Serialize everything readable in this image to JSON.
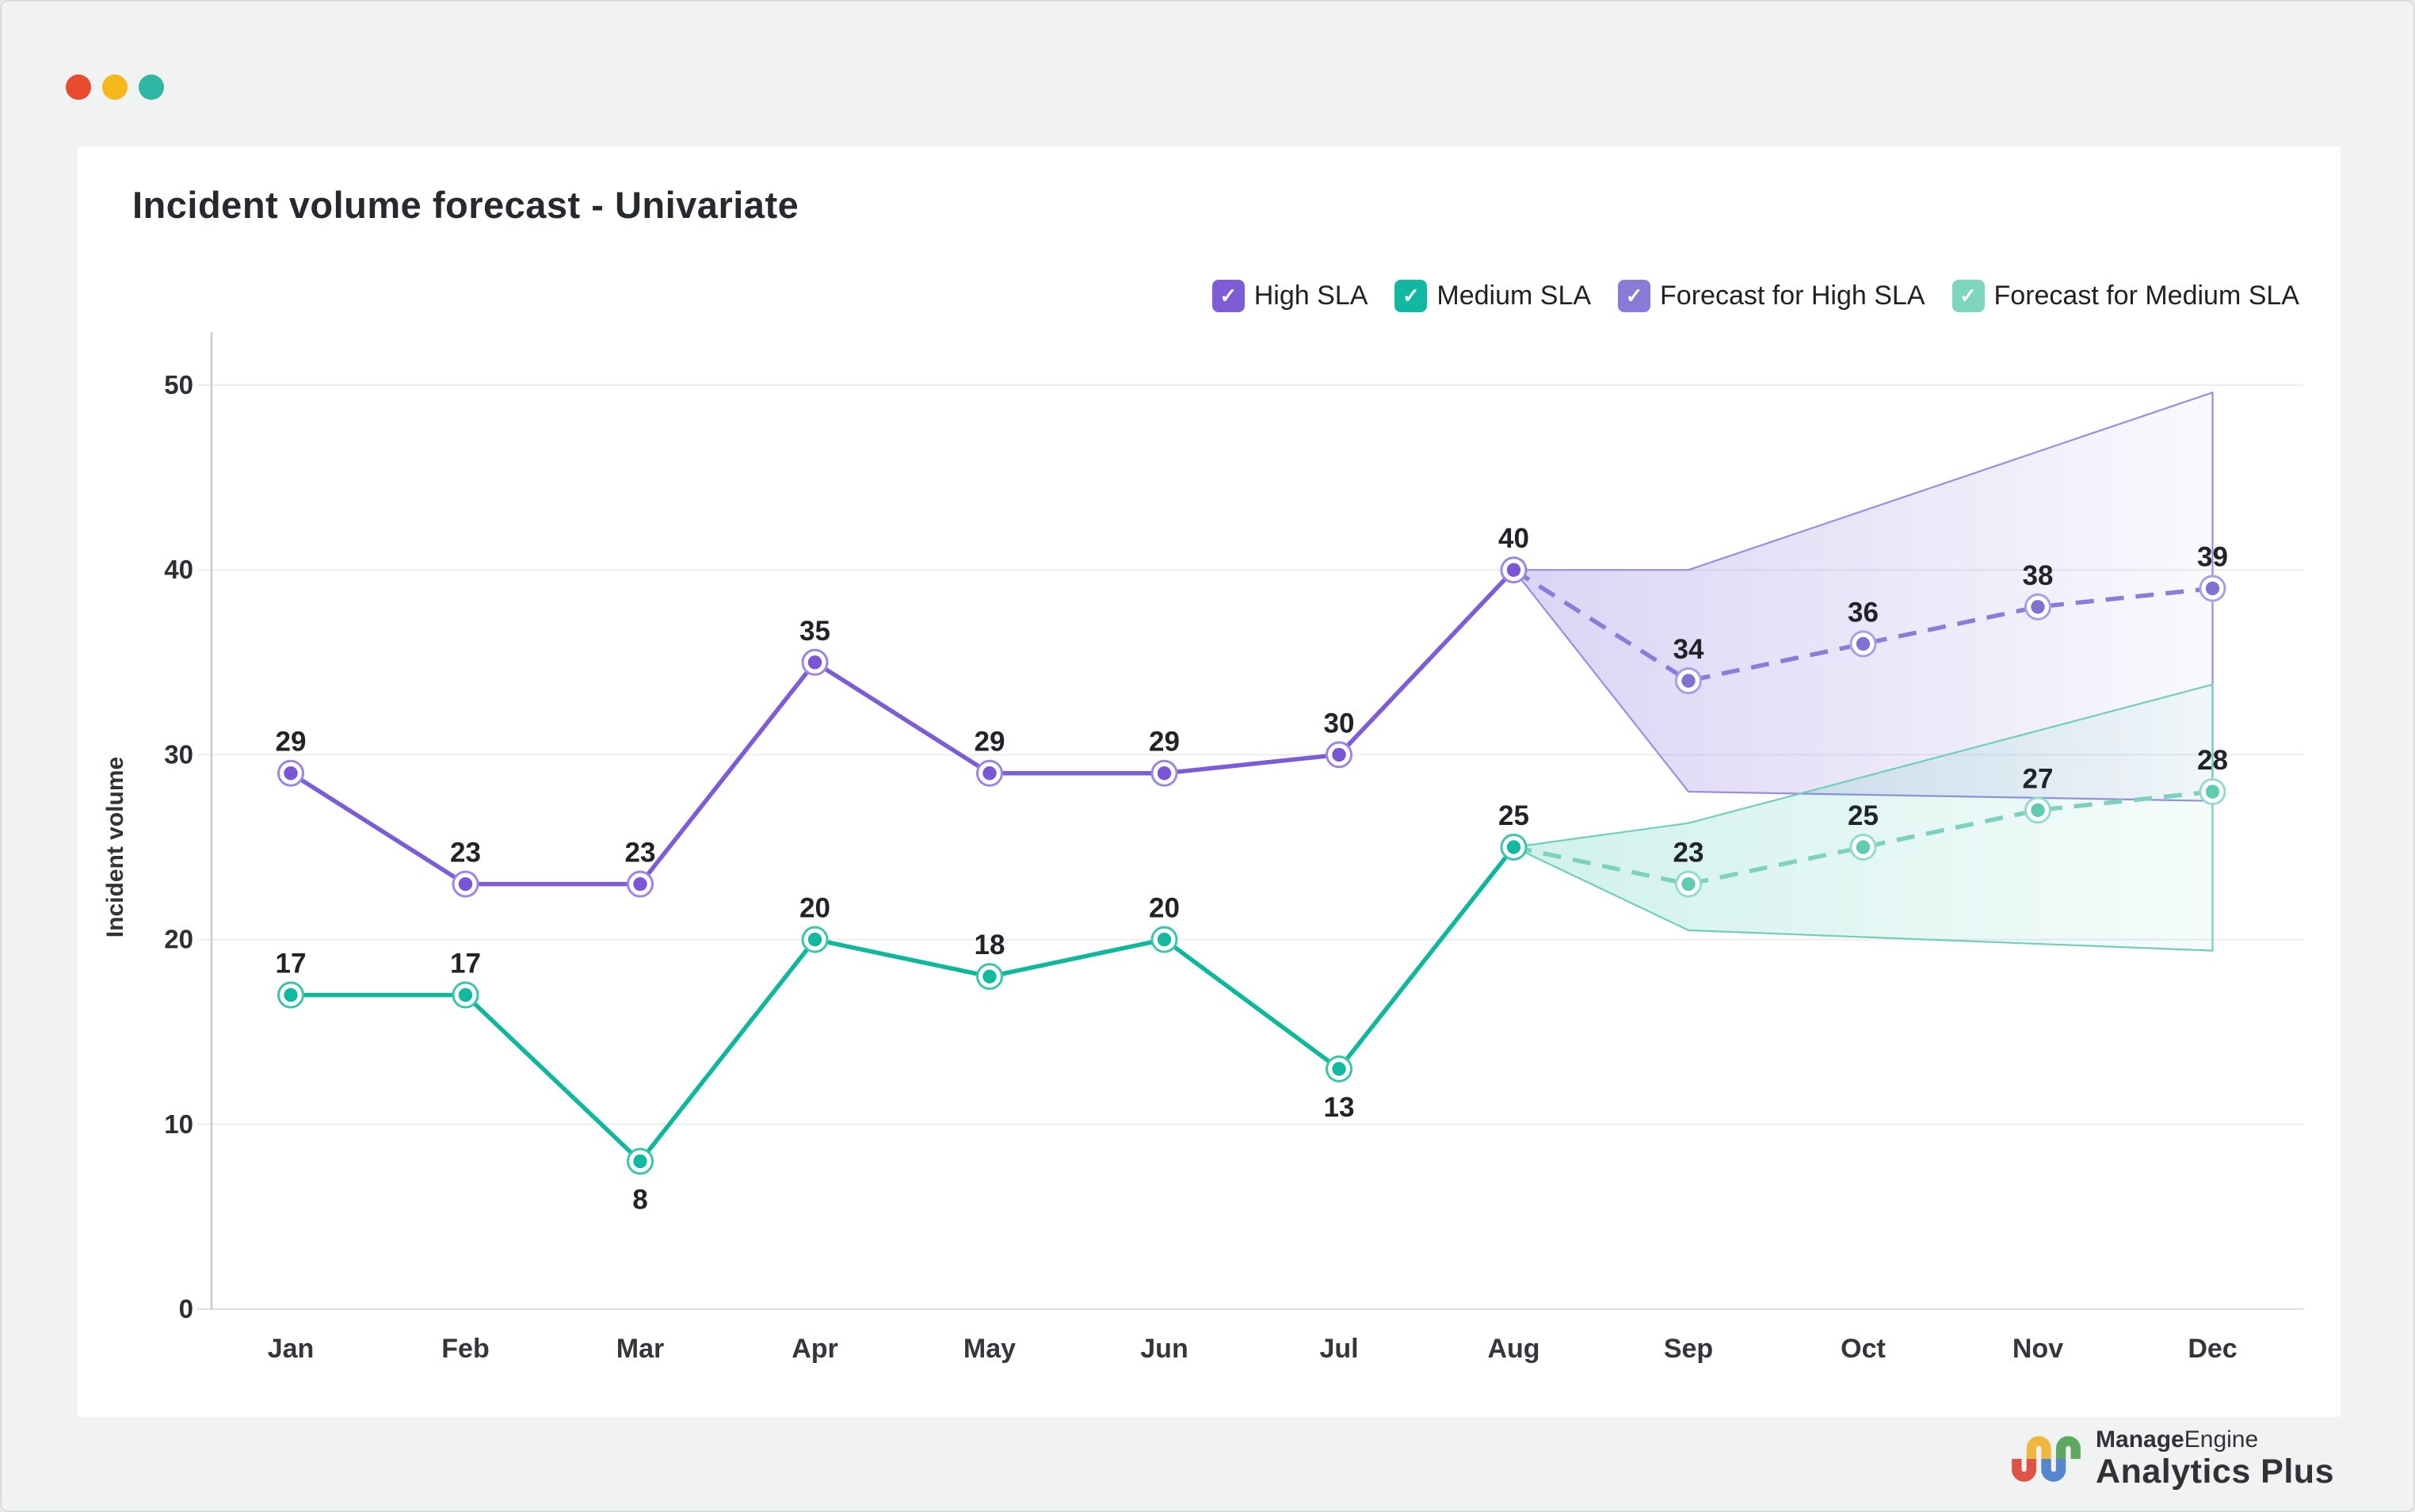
{
  "window": {
    "traffic_lights": [
      {
        "name": "close",
        "color": "#e84b2d"
      },
      {
        "name": "minimize",
        "color": "#f6b71d"
      },
      {
        "name": "maximize",
        "color": "#2fb7a6"
      }
    ]
  },
  "legend": [
    {
      "label": "High SLA",
      "color": "#7d5cd6"
    },
    {
      "label": "Medium SLA",
      "color": "#12b8a0"
    },
    {
      "label": "Forecast for High SLA",
      "color": "#8a7ad8"
    },
    {
      "label": "Forecast for Medium SLA",
      "color": "#7fd6c0"
    }
  ],
  "chart_data": {
    "type": "line",
    "title": "Incident volume forecast - Univariate",
    "xlabel": "",
    "ylabel": "Incident volume",
    "ylim": [
      0,
      50
    ],
    "yticks": [
      0,
      10,
      20,
      30,
      40,
      50
    ],
    "grid": true,
    "legend_position": "top-right",
    "categories": [
      "Jan",
      "Feb",
      "Mar",
      "Apr",
      "May",
      "Jun",
      "Jul",
      "Aug",
      "Sep",
      "Oct",
      "Nov",
      "Dec"
    ],
    "series": [
      {
        "name": "High SLA",
        "style": "solid",
        "color": "#7d5cd6",
        "marker_fill": "#7c55d6",
        "ring_color": "#9c86e3",
        "values": [
          29,
          23,
          23,
          35,
          29,
          29,
          30,
          40,
          null,
          null,
          null,
          null
        ],
        "labels_below": []
      },
      {
        "name": "Medium SLA",
        "style": "solid",
        "color": "#0fb79c",
        "marker_fill": "#12b8a0",
        "ring_color": "#3cc4ae",
        "values": [
          17,
          17,
          8,
          20,
          18,
          20,
          13,
          25,
          null,
          null,
          null,
          null
        ],
        "labels_below": [
          2,
          6
        ]
      },
      {
        "name": "Forecast for High SLA",
        "style": "dashed",
        "anchor": true,
        "color": "#8b7cda",
        "marker_fill": "#8172d2",
        "ring_color": "#a89ee8",
        "values": [
          null,
          null,
          null,
          null,
          null,
          null,
          null,
          40,
          34,
          36,
          38,
          39
        ],
        "labels_below": []
      },
      {
        "name": "Forecast for Medium SLA",
        "style": "dashed",
        "anchor": true,
        "color": "#7dd2bd",
        "marker_fill": "#5fcbb3",
        "ring_color": "#93dcc9",
        "values": [
          null,
          null,
          null,
          null,
          null,
          null,
          null,
          25,
          23,
          25,
          27,
          28
        ],
        "labels_below": []
      }
    ],
    "bands": [
      {
        "name": "high-sla-forecast-range",
        "stroke": "#9a8de0",
        "fill_from": "rgba(125,99,217,0.28)",
        "fill_to": "rgba(125,99,217,0.04)",
        "upper": [
          [
            7,
            40
          ],
          [
            8,
            40
          ],
          [
            11,
            49.6
          ]
        ],
        "lower": [
          [
            11,
            27.5
          ],
          [
            8,
            28
          ]
        ]
      },
      {
        "name": "medium-sla-forecast-range",
        "stroke": "#70cfb9",
        "fill_from": "rgba(20,184,153,0.20)",
        "fill_to": "rgba(20,184,153,0.04)",
        "upper": [
          [
            7,
            25
          ],
          [
            8,
            26.3
          ],
          [
            11,
            33.8
          ]
        ],
        "lower": [
          [
            11,
            19.4
          ],
          [
            8,
            20.5
          ]
        ]
      }
    ]
  },
  "footer": {
    "brand_line1_bold": "Manage",
    "brand_line1_regular": "Engine",
    "brand_line2": "Analytics Plus",
    "logo_colors": {
      "red": "#dd5346",
      "yellow": "#efb73b",
      "blue": "#5585cf",
      "green": "#5fa862"
    }
  }
}
